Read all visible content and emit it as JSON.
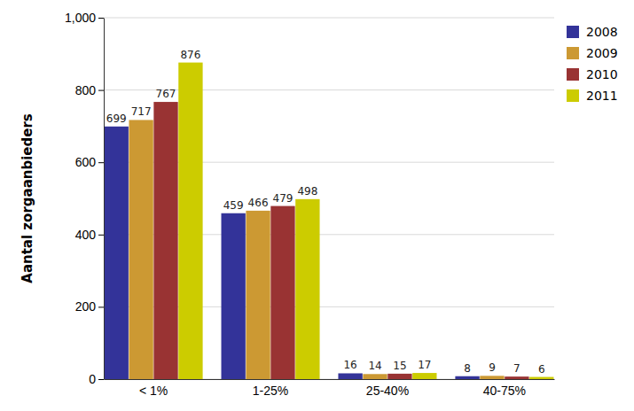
{
  "chart_data": {
    "type": "bar",
    "y_label": "Aantal zorgaanbieders",
    "categories": [
      "< 1%",
      "1-25%",
      "25-40%",
      "40-75%"
    ],
    "series": [
      {
        "name": "2008",
        "color": "#333399",
        "values": [
          699,
          459,
          16,
          8
        ]
      },
      {
        "name": "2009",
        "color": "#cc9933",
        "values": [
          717,
          466,
          14,
          9
        ]
      },
      {
        "name": "2010",
        "color": "#993333",
        "values": [
          767,
          479,
          15,
          7
        ]
      },
      {
        "name": "2011",
        "color": "#cccc00",
        "values": [
          876,
          498,
          17,
          6
        ]
      }
    ],
    "ylim": [
      0,
      1000
    ],
    "yticks": [
      0,
      200,
      400,
      600,
      800,
      {
        "value": 1000,
        "label": "1,000"
      }
    ],
    "grid": true,
    "legend": "top-right",
    "data_labels": true
  }
}
